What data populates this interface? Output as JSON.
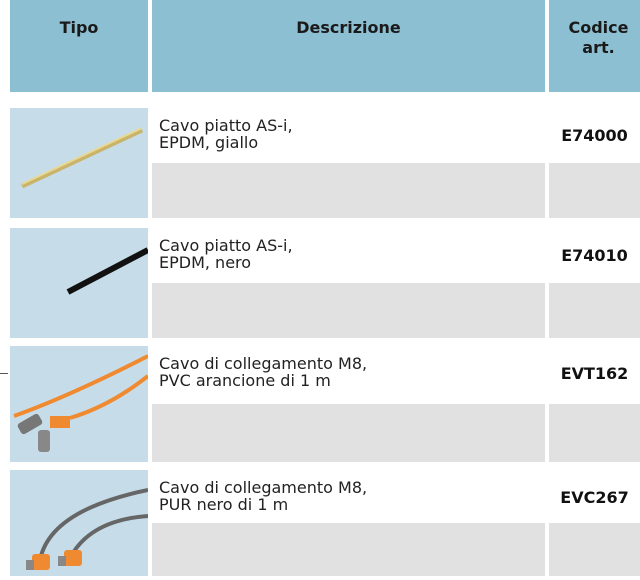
{
  "table": {
    "columns": [
      "Tipo",
      "Descrizione",
      "Codice art."
    ],
    "rows": [
      {
        "description": [
          "Cavo piatto AS-i,",
          "EPDM, giallo"
        ],
        "code": "E74000"
      },
      {
        "description": [
          "Cavo piatto AS-i,",
          "EPDM, nero"
        ],
        "code": "E74010"
      },
      {
        "description": [
          "Cavo di collegamento M8,",
          "PVC arancione di 1 m"
        ],
        "code": "EVT162"
      },
      {
        "description": [
          "Cavo di collegamento M8,",
          "PUR nero di 1 m"
        ],
        "code": "EVC267"
      }
    ]
  }
}
